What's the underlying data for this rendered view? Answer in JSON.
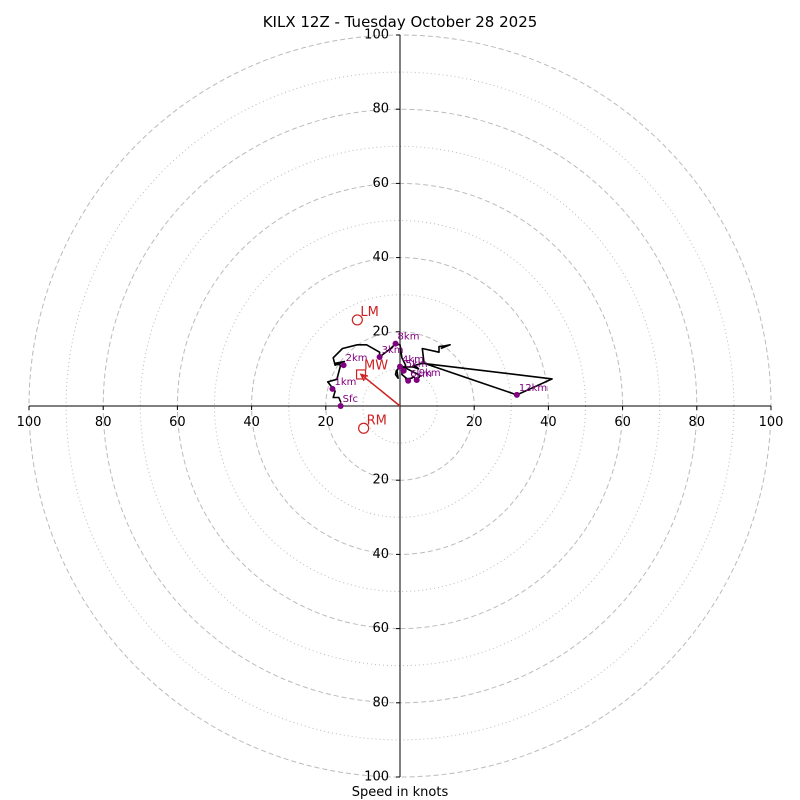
{
  "chart_data": {
    "type": "hodograph",
    "title": "KILX 12Z - Tuesday October 28 2025",
    "xlabel": "Speed in knots",
    "units": "knots",
    "max_speed": 100,
    "ring_major": [
      20,
      40,
      60,
      80,
      100
    ],
    "ring_minor": [
      10,
      30,
      50,
      70,
      90
    ],
    "tick_labels": {
      "x_left": [
        "100",
        "80",
        "60",
        "40",
        "20"
      ],
      "x_right": [
        "20",
        "40",
        "60",
        "80",
        "100"
      ],
      "y_top": [
        "100",
        "80",
        "60",
        "40",
        "20"
      ],
      "y_bottom": [
        "20",
        "40",
        "60",
        "80",
        "100"
      ]
    },
    "trace": [
      [
        -15.9,
        0.9
      ],
      [
        -16.5,
        2.3
      ],
      [
        -18.0,
        2.3
      ],
      [
        -17.5,
        4.0
      ],
      [
        -19.5,
        6.5
      ],
      [
        -17.0,
        7.2
      ],
      [
        -16.0,
        11.0
      ],
      [
        -17.5,
        11.5
      ],
      [
        -15.0,
        12.0
      ],
      [
        -17.5,
        11.0
      ],
      [
        -18.0,
        13.0
      ],
      [
        -15.5,
        15.5
      ],
      [
        -11.5,
        16.5
      ],
      [
        -9.0,
        16.5
      ],
      [
        -5.5,
        14.5
      ],
      [
        -5.5,
        13.2
      ],
      [
        -2.5,
        15.5
      ],
      [
        -1.5,
        16.5
      ],
      [
        -1.2,
        16.8
      ],
      [
        0.0,
        16.5
      ],
      [
        0.5,
        13.0
      ],
      [
        1.5,
        11.0
      ],
      [
        0.5,
        9.0
      ],
      [
        0.5,
        8.5
      ],
      [
        2.3,
        7.0
      ],
      [
        1.5,
        7.3
      ],
      [
        3.2,
        7.5
      ],
      [
        3.5,
        8.0
      ],
      [
        4.5,
        7.0
      ],
      [
        5.5,
        8.2
      ],
      [
        3.5,
        9.2
      ],
      [
        2.0,
        10.0
      ],
      [
        0.0,
        10.6
      ],
      [
        -1.0,
        9.5
      ],
      [
        -1.2,
        8.5
      ],
      [
        -0.5,
        7.5
      ],
      [
        -0.8,
        9.5
      ],
      [
        0.0,
        11.0
      ],
      [
        1.0,
        10.5
      ],
      [
        3.5,
        10.5
      ],
      [
        5.0,
        10.0
      ],
      [
        4.5,
        10.5
      ],
      [
        3.5,
        10.8
      ],
      [
        6.0,
        11.5
      ],
      [
        41.0,
        7.3
      ],
      [
        31.5,
        3.0
      ],
      [
        6.5,
        11.5
      ],
      [
        6.0,
        15.5
      ],
      [
        10.5,
        14.5
      ],
      [
        10.5,
        16.0
      ],
      [
        12.0,
        16.2
      ],
      [
        13.5,
        16.5
      ],
      [
        11.0,
        15.5
      ]
    ],
    "levels": [
      {
        "label": "Sfc",
        "u": -16.0,
        "v": 0.0
      },
      {
        "label": "1km",
        "u": -18.2,
        "v": 4.6
      },
      {
        "label": "2km",
        "u": -15.2,
        "v": 11.0
      },
      {
        "label": "3km",
        "u": -5.5,
        "v": 13.2
      },
      {
        "label": "4km",
        "u": 0.0,
        "v": 10.6
      },
      {
        "label": "5km",
        "u": 1.0,
        "v": 9.5
      },
      {
        "label": "6km",
        "u": 2.2,
        "v": 6.8
      },
      {
        "label": "8km",
        "u": -1.2,
        "v": 16.8
      },
      {
        "label": "9km",
        "u": 4.5,
        "v": 7.0
      },
      {
        "label": "12km",
        "u": 31.5,
        "v": 3.0
      }
    ],
    "markers": {
      "storm_motion": {
        "label": "MW",
        "u": -10.5,
        "v": 8.5
      },
      "left_mover": {
        "label": "LM",
        "u": -11.5,
        "v": 23.2
      },
      "right_mover": {
        "label": "RM",
        "u": -9.8,
        "v": -6.0
      }
    },
    "colors": {
      "trace": "#000000",
      "levels": "#800080",
      "markers": "#cc2222",
      "rings": "#bbbbbb"
    }
  }
}
